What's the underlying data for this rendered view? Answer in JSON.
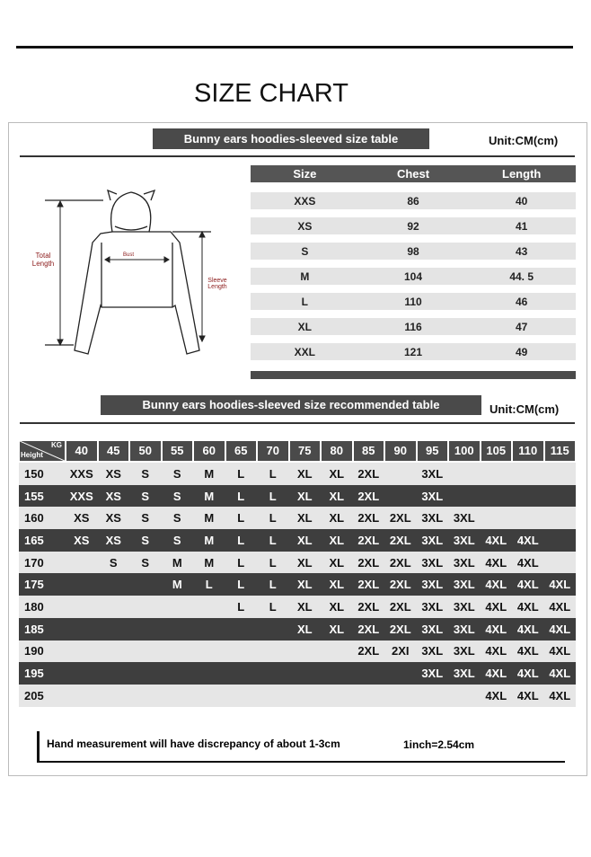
{
  "title": "SIZE CHART",
  "size_table": {
    "heading": "Bunny ears hoodies-sleeved size  table",
    "unit": "Unit:CM(cm)",
    "columns": [
      "Size",
      "Chest",
      "Length"
    ],
    "rows": [
      [
        "XXS",
        "86",
        "40"
      ],
      [
        "XS",
        "92",
        "41"
      ],
      [
        "S",
        "98",
        "43"
      ],
      [
        "M",
        "104",
        "44. 5"
      ],
      [
        "L",
        "110",
        "46"
      ],
      [
        "XL",
        "116",
        "47"
      ],
      [
        "XXL",
        "121",
        "49"
      ]
    ]
  },
  "diagram": {
    "total_length": "Total Length",
    "bust": "Bust",
    "sleeve_length": "Sleeve Length"
  },
  "rec_table": {
    "heading": "Bunny ears hoodies-sleeved size recommended table",
    "unit": "Unit:CM(cm)",
    "corner_kg": "KG",
    "corner_height": "Height",
    "weights": [
      "40",
      "45",
      "50",
      "55",
      "60",
      "65",
      "70",
      "75",
      "80",
      "85",
      "90",
      "95",
      "100",
      "105",
      "110",
      "115"
    ],
    "rows": [
      {
        "height": "150",
        "sizes": [
          "XXS",
          "XS",
          "S",
          "S",
          "M",
          "L",
          "L",
          "XL",
          "XL",
          "2XL",
          "",
          "3XL",
          "",
          "",
          "",
          ""
        ]
      },
      {
        "height": "155",
        "sizes": [
          "XXS",
          "XS",
          "S",
          "S",
          "M",
          "L",
          "L",
          "XL",
          "XL",
          "2XL",
          "",
          "3XL",
          "",
          "",
          "",
          ""
        ]
      },
      {
        "height": "160",
        "sizes": [
          "XS",
          "XS",
          "S",
          "S",
          "M",
          "L",
          "L",
          "XL",
          "XL",
          "2XL",
          "2XL",
          "3XL",
          "3XL",
          "",
          "",
          ""
        ]
      },
      {
        "height": "165",
        "sizes": [
          "XS",
          "XS",
          "S",
          "S",
          "M",
          "L",
          "L",
          "XL",
          "XL",
          "2XL",
          "2XL",
          "3XL",
          "3XL",
          "4XL",
          "4XL",
          ""
        ]
      },
      {
        "height": "170",
        "sizes": [
          "",
          "S",
          "S",
          "M",
          "M",
          "L",
          "L",
          "XL",
          "XL",
          "2XL",
          "2XL",
          "3XL",
          "3XL",
          "4XL",
          "4XL",
          ""
        ]
      },
      {
        "height": "175",
        "sizes": [
          "",
          "",
          "",
          "M",
          "L",
          "L",
          "L",
          "XL",
          "XL",
          "2XL",
          "2XL",
          "3XL",
          "3XL",
          "4XL",
          "4XL",
          "4XL"
        ]
      },
      {
        "height": "180",
        "sizes": [
          "",
          "",
          "",
          "",
          "",
          "L",
          "L",
          "XL",
          "XL",
          "2XL",
          "2XL",
          "3XL",
          "3XL",
          "4XL",
          "4XL",
          "4XL"
        ]
      },
      {
        "height": "185",
        "sizes": [
          "",
          "",
          "",
          "",
          "",
          "",
          "",
          "XL",
          "XL",
          "2XL",
          "2XL",
          "3XL",
          "3XL",
          "4XL",
          "4XL",
          "4XL"
        ]
      },
      {
        "height": "190",
        "sizes": [
          "",
          "",
          "",
          "",
          "",
          "",
          "",
          "",
          "",
          "2XL",
          "2XI",
          "3XL",
          "3XL",
          "4XL",
          "4XL",
          "4XL"
        ]
      },
      {
        "height": "195",
        "sizes": [
          "",
          "",
          "",
          "",
          "",
          "",
          "",
          "",
          "",
          "",
          "",
          "3XL",
          "3XL",
          "4XL",
          "4XL",
          "4XL"
        ]
      },
      {
        "height": "205",
        "sizes": [
          "",
          "",
          "",
          "",
          "",
          "",
          "",
          "",
          "",
          "",
          "",
          "",
          "",
          "4XL",
          "4XL",
          "4XL"
        ]
      }
    ]
  },
  "footer": {
    "note": "Hand measurement will have discrepancy of about  1-3cm",
    "conversion": "1inch=2.54cm"
  }
}
